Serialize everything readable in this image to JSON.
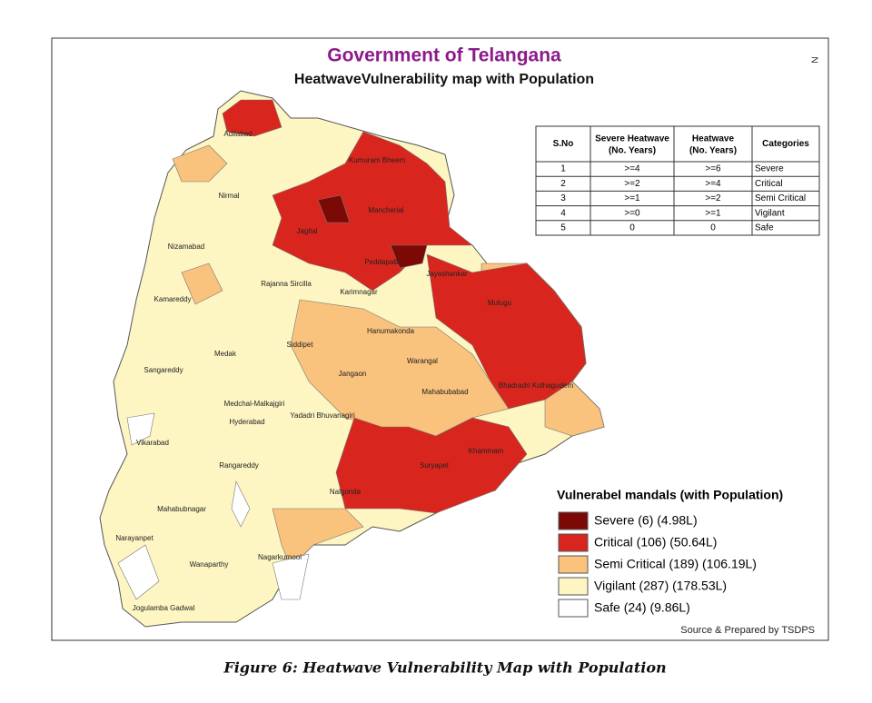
{
  "header": {
    "title": "Government of Telangana",
    "subtitle": "HeatwaveVulnerability map with Population",
    "north": "N"
  },
  "table": {
    "headers": [
      "S.No",
      "Severe Heatwave (No. Years)",
      "Heatwave (No. Years)",
      "Categories"
    ],
    "rows": [
      [
        "1",
        ">=4",
        ">=6",
        "Severe"
      ],
      [
        "2",
        ">=2",
        ">=4",
        "Critical"
      ],
      [
        "3",
        ">=1",
        ">=2",
        "Semi Critical"
      ],
      [
        "4",
        ">=0",
        ">=1",
        "Vigilant"
      ],
      [
        "5",
        "0",
        "0",
        "Safe"
      ]
    ]
  },
  "legend": {
    "title": "Vulnerabel mandals (with Population)",
    "items": [
      {
        "label": "Severe (6) (4.98L)",
        "color": "#7b0a06"
      },
      {
        "label": "Critical (106) (50.64L)",
        "color": "#d8261e"
      },
      {
        "label": "Semi Critical (189) (106.19L)",
        "color": "#f9c27d"
      },
      {
        "label": "Vigilant (287) (178.53L)",
        "color": "#fdf6c3"
      },
      {
        "label": "Safe (24) (9.86L)",
        "color": "#ffffff"
      }
    ]
  },
  "districts": [
    "Adilabad",
    "Kumuram Bheem",
    "Nirmal",
    "Mancherial",
    "Jagtial",
    "Nizamabad",
    "Peddapalli",
    "Jayashankar",
    "Rajanna Sircilla",
    "Karimnagar",
    "Kamareddy",
    "Mulugu",
    "Hanumakonda",
    "Siddipet",
    "Medak",
    "Sangareddy",
    "Jangaon",
    "Warangal",
    "Bhadradri Kothagudem",
    "Mahabubabad",
    "Medchal-Malkajgiri",
    "Hyderabad",
    "Yadadri Bhuvanagiri",
    "Vikarabad",
    "Khammam",
    "Suryapet",
    "Rangareddy",
    "Nalgonda",
    "Mahabubnagar",
    "Narayanpet",
    "Nagarkurnool",
    "Wanaparthy",
    "Jogulamba Gadwal"
  ],
  "source": "Source & Prepared by TSDPS",
  "caption": "Figure 6: Heatwave Vulnerability Map with Population"
}
